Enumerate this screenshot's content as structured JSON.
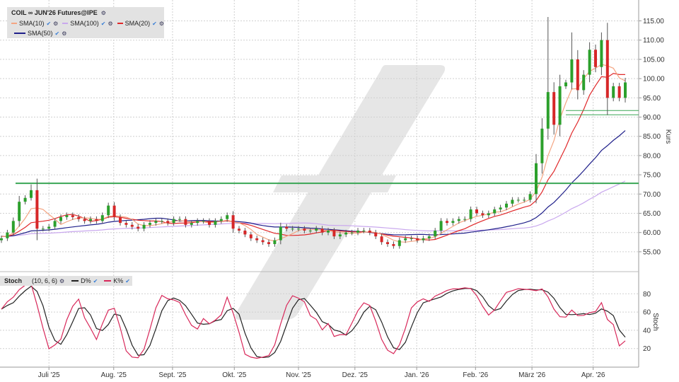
{
  "header": {
    "title": "COIL ∞ JUN'26 Futures@IPE",
    "legend": [
      {
        "label": "SMA(10)",
        "color": "#f4a582"
      },
      {
        "label": "SMA(100)",
        "color": "#c9a8ee"
      },
      {
        "label": "SMA(20)",
        "color": "#e0282a"
      },
      {
        "label": "SMA(50)",
        "color": "#1f1f8a"
      }
    ]
  },
  "stoch_legend": {
    "title": "Stoch",
    "params": "(10, 6, 6)",
    "d_label": "D%",
    "k_label": "K%",
    "d_color": "#222222",
    "k_color": "#d8285a"
  },
  "watermark_color": "#e6e6e6",
  "chart_data": [
    {
      "type": "candlestick",
      "ylabel": "Kurs",
      "ylim": [
        50,
        120
      ],
      "yticks": [
        "55.00",
        "60.00",
        "65.00",
        "70.00",
        "75.00",
        "80.00",
        "85.00",
        "90.00",
        "95.00",
        "100.00",
        "105.00",
        "110.00",
        "115.00"
      ],
      "xticks": [
        {
          "label": "Juli '25",
          "index": 8
        },
        {
          "label": "Aug. '25",
          "index": 18.9
        },
        {
          "label": "Sept. '25",
          "index": 28.8
        },
        {
          "label": "Okt. '25",
          "index": 39.2
        },
        {
          "label": "Nov. '25",
          "index": 50
        },
        {
          "label": "Dez. '25",
          "index": 59.5
        },
        {
          "label": "Jan. '26",
          "index": 69.9
        },
        {
          "label": "Feb. '26",
          "index": 79.8
        },
        {
          "label": "März '26",
          "index": 89.3
        },
        {
          "label": "Apr. '26",
          "index": 99.6
        }
      ],
      "grid": true,
      "close": [
        58.5,
        60,
        63,
        68,
        69,
        71,
        61,
        61,
        61.5,
        63,
        64,
        64.5,
        64,
        63.5,
        63,
        63.5,
        63,
        64.5,
        67,
        64,
        62.5,
        62,
        61.5,
        61,
        62,
        62.5,
        63,
        63,
        62.5,
        63.5,
        63.5,
        62,
        62.5,
        63,
        63,
        62,
        63,
        63.5,
        64.5,
        61,
        60.5,
        59.5,
        58.5,
        58,
        57.5,
        57,
        58,
        61.5,
        61,
        61,
        61,
        60.5,
        60.5,
        61,
        60,
        60.5,
        59,
        59.5,
        60,
        60,
        60.5,
        60.5,
        60,
        59,
        57.5,
        57,
        56.5,
        58,
        58.5,
        58.5,
        58,
        58.5,
        59,
        60.5,
        63,
        62.5,
        63,
        63.5,
        63.5,
        66,
        65,
        64.5,
        65,
        66,
        66.5,
        67.5,
        68.5,
        68.5,
        68.5,
        70,
        78,
        87,
        96.5,
        88,
        98,
        99,
        105,
        97,
        101,
        107.5,
        103,
        110,
        95,
        98,
        95,
        99
      ],
      "spikes": [
        {
          "index": 5,
          "high": 72.5
        },
        {
          "index": 92,
          "high": 116
        },
        {
          "index": 96,
          "high": 112
        },
        {
          "index": 101,
          "high": 112
        },
        {
          "index": 102,
          "low": 90.5
        }
      ],
      "horizontal_lines": [
        {
          "value": 72.8,
          "from_index": 0,
          "color": "#3aa655"
        },
        {
          "value": 91.7,
          "from_index": 95,
          "color": "#3aa655"
        },
        {
          "value": 90.6,
          "from_index": 95,
          "color": "#3aa655"
        }
      ],
      "series": [
        {
          "name": "SMA(10)",
          "period": 10,
          "color": "#f4a582"
        },
        {
          "name": "SMA(20)",
          "period": 20,
          "color": "#e0282a"
        },
        {
          "name": "SMA(50)",
          "period": 50,
          "color": "#1f1f8a"
        },
        {
          "name": "SMA(100)",
          "period": 100,
          "color": "#c9a8ee"
        }
      ],
      "up_color": "#2ca02c",
      "down_color": "#d62728"
    },
    {
      "type": "line",
      "ylabel": "Stoch",
      "ylim": [
        0,
        100
      ],
      "yticks": [
        "20",
        "40",
        "60",
        "80"
      ],
      "series": [
        {
          "name": "D%",
          "color": "#222222"
        },
        {
          "name": "K%",
          "color": "#d8285a"
        }
      ]
    }
  ]
}
